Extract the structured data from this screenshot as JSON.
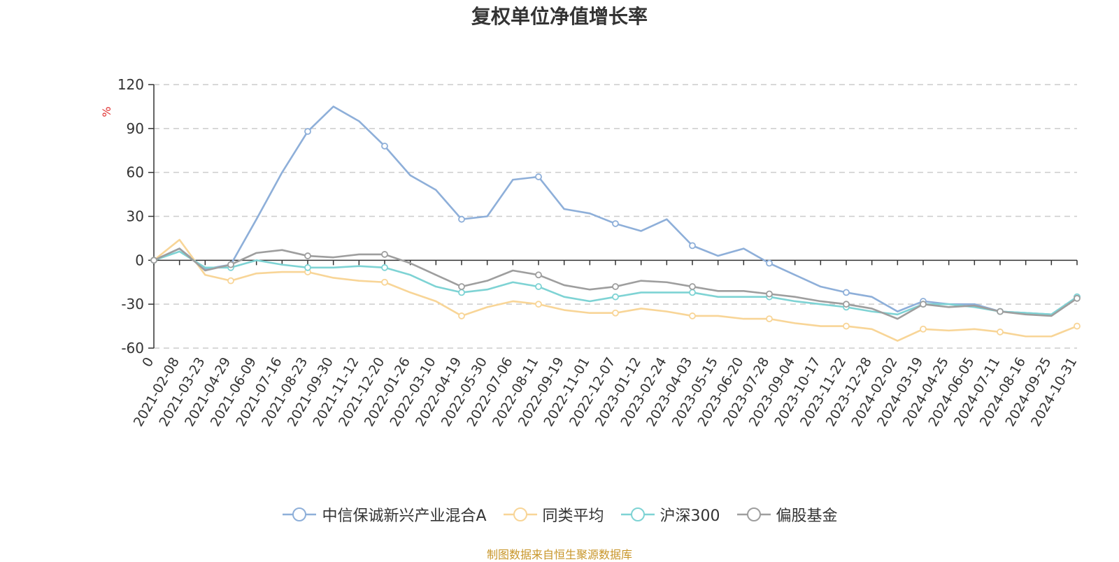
{
  "chart_data": {
    "type": "line",
    "title": "复权单位净值增长率",
    "ylabel": "%",
    "ylim": [
      -60,
      120
    ],
    "yticks": [
      "120",
      "90",
      "60",
      "30",
      "0",
      "-30",
      "-60"
    ],
    "grid": true,
    "legend_position": "bottom",
    "x_tick_labels": [
      "0",
      "2021-02-08",
      "2021-03-23",
      "2021-04-29",
      "2021-06-09",
      "2021-07-16",
      "2021-08-23",
      "2021-09-30",
      "2021-11-12",
      "2021-12-20",
      "2022-01-26",
      "2022-03-10",
      "2022-04-19",
      "2022-05-30",
      "2022-07-06",
      "2022-08-11",
      "2022-09-19",
      "2022-11-01",
      "2022-12-07",
      "2023-01-12",
      "2023-02-24",
      "2023-04-03",
      "2023-05-15",
      "2023-06-20",
      "2023-07-28",
      "2023-09-04",
      "2023-10-17",
      "2023-11-22",
      "2023-12-28",
      "2024-02-02",
      "2024-03-19",
      "2024-04-25",
      "2024-06-05",
      "2024-07-11",
      "2024-08-16",
      "2024-09-25",
      "2024-10-31"
    ],
    "series": [
      {
        "name": "中信保诚新兴产业混合A",
        "color": "#8eafd9",
        "values": [
          0,
          8,
          -6,
          -3,
          28,
          60,
          88,
          105,
          95,
          78,
          58,
          48,
          28,
          30,
          55,
          57,
          35,
          32,
          25,
          20,
          28,
          10,
          3,
          8,
          -2,
          -10,
          -18,
          -22,
          -25,
          -35,
          -28,
          -30,
          -30,
          -35,
          -36,
          -37,
          -25
        ]
      },
      {
        "name": "同类平均",
        "color": "#f8d597",
        "values": [
          0,
          14,
          -10,
          -14,
          -9,
          -8,
          -8,
          -12,
          -14,
          -15,
          -22,
          -28,
          -38,
          -32,
          -28,
          -30,
          -34,
          -36,
          -36,
          -33,
          -35,
          -38,
          -38,
          -40,
          -40,
          -43,
          -45,
          -45,
          -47,
          -55,
          -47,
          -48,
          -47,
          -49,
          -52,
          -52,
          -45
        ]
      },
      {
        "name": "沪深300",
        "color": "#7ed3d4",
        "values": [
          0,
          6,
          -5,
          -5,
          0,
          -3,
          -5,
          -5,
          -4,
          -5,
          -10,
          -18,
          -22,
          -20,
          -15,
          -18,
          -25,
          -28,
          -25,
          -22,
          -22,
          -22,
          -25,
          -25,
          -25,
          -28,
          -30,
          -32,
          -35,
          -37,
          -30,
          -30,
          -32,
          -35,
          -36,
          -37,
          -25
        ]
      },
      {
        "name": "偏股基金",
        "color": "#9e9e9e",
        "values": [
          0,
          8,
          -7,
          -3,
          5,
          7,
          3,
          2,
          4,
          4,
          -2,
          -10,
          -18,
          -14,
          -7,
          -10,
          -17,
          -20,
          -18,
          -14,
          -15,
          -18,
          -21,
          -21,
          -23,
          -25,
          -28,
          -30,
          -33,
          -40,
          -30,
          -32,
          -31,
          -35,
          -37,
          -38,
          -26
        ]
      }
    ]
  },
  "source_note": "制图数据来自恒生聚源数据库",
  "colors": {
    "title": "#333333",
    "axis": "#333333",
    "grid": "#cccccc",
    "ylabel": "#e03030",
    "source": "#c8962a"
  }
}
